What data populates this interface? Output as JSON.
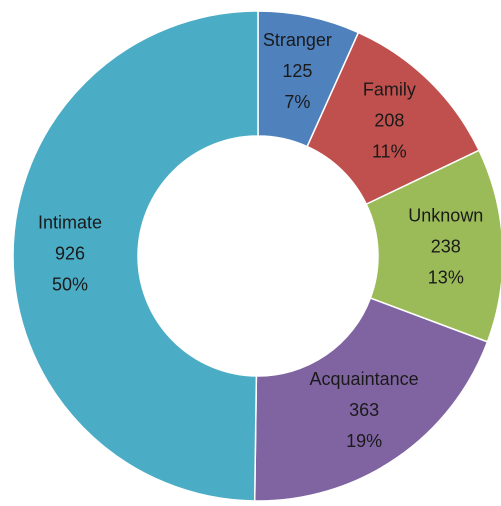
{
  "chart_data": {
    "type": "donut",
    "categories": [
      "Stranger",
      "Family",
      "Unknown",
      "Acquaintance",
      "Intimate"
    ],
    "values": [
      125,
      208,
      238,
      363,
      926
    ],
    "percents": [
      7,
      11,
      13,
      19,
      50
    ],
    "percent_labels": [
      "7%",
      "11%",
      "13%",
      "19%",
      "50%"
    ],
    "colors": [
      "#4f81bd",
      "#c0504d",
      "#9bbb59",
      "#8064a2",
      "#4bacc6"
    ]
  }
}
